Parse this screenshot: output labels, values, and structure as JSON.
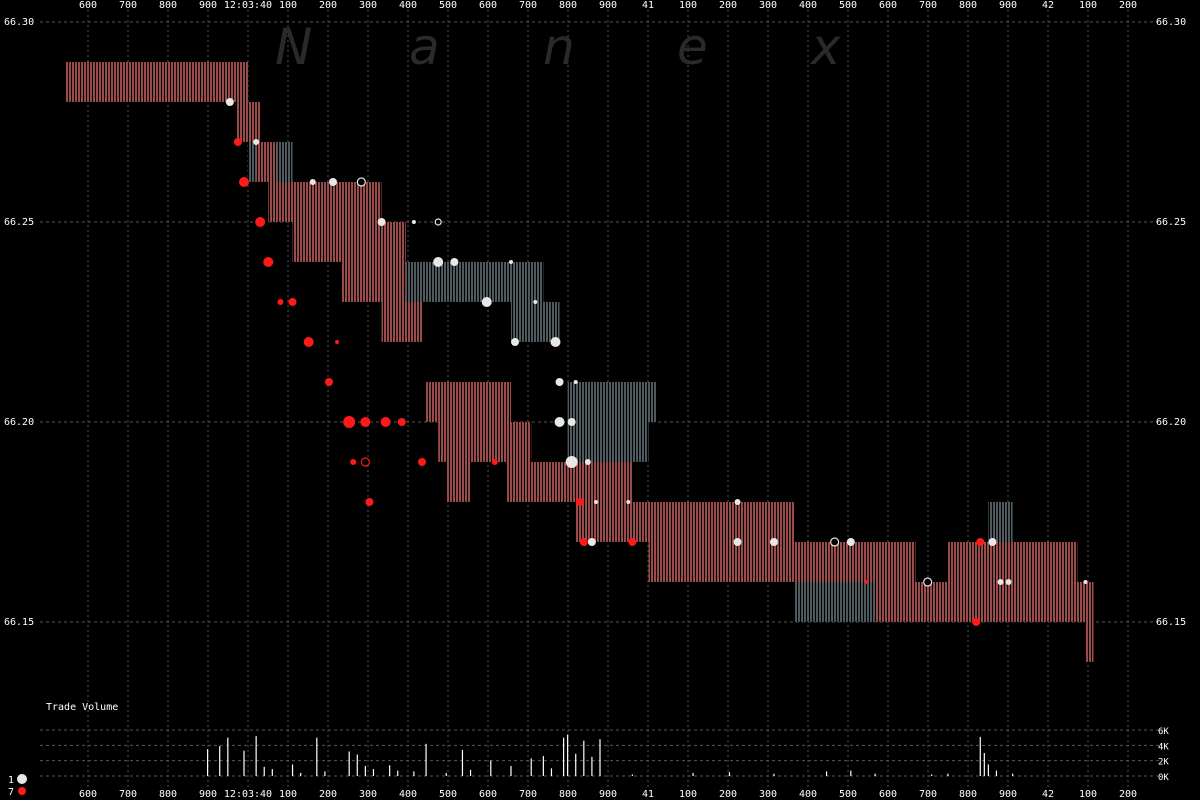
{
  "watermark": [
    "N",
    "a",
    "n",
    "e",
    "x"
  ],
  "time_ticks": [
    "600",
    "700",
    "800",
    "900",
    "12:03:40",
    "100",
    "200",
    "300",
    "400",
    "500",
    "600",
    "700",
    "800",
    "900",
    "41",
    "100",
    "200",
    "300",
    "400",
    "500",
    "600",
    "700",
    "800",
    "900",
    "42",
    "100",
    "200"
  ],
  "price_ticks": [
    "66.30",
    "66.25",
    "66.20",
    "66.15"
  ],
  "volume_title": "Trade Volume",
  "volume_ticks": [
    "6K",
    "4K",
    "2K",
    "0K"
  ],
  "legend": [
    {
      "label": "1",
      "color": "#e8e8e8"
    },
    {
      "label": "7",
      "color": "#ff1a1a"
    }
  ],
  "colors": {
    "background": "#000000",
    "grid": "#555555",
    "red_band": "#9c4a4a",
    "gray_band": "#4f5a5e",
    "white_trade": "#e8e8e8",
    "red_trade": "#ff1a1a",
    "volume_bar": "#ffffff"
  },
  "chart_data": {
    "type": "scatter",
    "title": "",
    "xlabel": "",
    "ylabel": "",
    "x_unit": "ms after 12:03:39.600",
    "xlim": [
      0,
      2640
    ],
    "ylim": [
      66.135,
      66.3
    ],
    "quote_bands": [
      {
        "color": "red",
        "x0": 0,
        "x1": 450,
        "lo": 66.28,
        "hi": 66.29
      },
      {
        "color": "red",
        "x0": 420,
        "x1": 480,
        "lo": 66.27,
        "hi": 66.28
      },
      {
        "color": "gray",
        "x0": 450,
        "x1": 560,
        "lo": 66.26,
        "hi": 66.27
      },
      {
        "color": "red",
        "x0": 470,
        "x1": 520,
        "lo": 66.26,
        "hi": 66.27
      },
      {
        "color": "red",
        "x0": 500,
        "x1": 780,
        "lo": 66.25,
        "hi": 66.26
      },
      {
        "color": "red",
        "x0": 560,
        "x1": 660,
        "lo": 66.24,
        "hi": 66.25
      },
      {
        "color": "red",
        "x0": 660,
        "x1": 840,
        "lo": 66.24,
        "hi": 66.25
      },
      {
        "color": "red",
        "x0": 680,
        "x1": 840,
        "lo": 66.23,
        "hi": 66.24
      },
      {
        "color": "gray",
        "x0": 840,
        "x1": 1180,
        "lo": 66.23,
        "hi": 66.24
      },
      {
        "color": "red",
        "x0": 780,
        "x1": 880,
        "lo": 66.22,
        "hi": 66.23
      },
      {
        "color": "gray",
        "x0": 1100,
        "x1": 1220,
        "lo": 66.22,
        "hi": 66.23
      },
      {
        "color": "red",
        "x0": 890,
        "x1": 1100,
        "lo": 66.2,
        "hi": 66.21
      },
      {
        "color": "gray",
        "x0": 1240,
        "x1": 1460,
        "lo": 66.2,
        "hi": 66.21
      },
      {
        "color": "red",
        "x0": 920,
        "x1": 1150,
        "lo": 66.19,
        "hi": 66.2
      },
      {
        "color": "gray",
        "x0": 1240,
        "x1": 1440,
        "lo": 66.19,
        "hi": 66.2
      },
      {
        "color": "red",
        "x0": 940,
        "x1": 1000,
        "lo": 66.18,
        "hi": 66.19
      },
      {
        "color": "red",
        "x0": 1090,
        "x1": 1240,
        "lo": 66.18,
        "hi": 66.19
      },
      {
        "color": "red",
        "x0": 1240,
        "x1": 1400,
        "lo": 66.18,
        "hi": 66.19
      },
      {
        "color": "red",
        "x0": 1260,
        "x1": 1800,
        "lo": 66.17,
        "hi": 66.18
      },
      {
        "color": "red",
        "x0": 1440,
        "x1": 2100,
        "lo": 66.16,
        "hi": 66.17
      },
      {
        "color": "red",
        "x0": 2180,
        "x1": 2500,
        "lo": 66.16,
        "hi": 66.17
      },
      {
        "color": "gray",
        "x0": 1800,
        "x1": 2000,
        "lo": 66.15,
        "hi": 66.16
      },
      {
        "color": "red",
        "x0": 2000,
        "x1": 2540,
        "lo": 66.15,
        "hi": 66.16
      },
      {
        "color": "red",
        "x0": 2520,
        "x1": 2540,
        "lo": 66.14,
        "hi": 66.15
      },
      {
        "color": "gray",
        "x0": 2280,
        "x1": 2340,
        "lo": 66.17,
        "hi": 66.18
      }
    ],
    "trades": [
      {
        "x": 405,
        "price": 66.28,
        "color": "white",
        "size": 4
      },
      {
        "x": 425,
        "price": 66.27,
        "color": "red",
        "size": 4
      },
      {
        "x": 470,
        "price": 66.27,
        "color": "white",
        "size": 3
      },
      {
        "x": 440,
        "price": 66.26,
        "color": "red",
        "size": 5
      },
      {
        "x": 610,
        "price": 66.26,
        "color": "white",
        "size": 3
      },
      {
        "x": 660,
        "price": 66.26,
        "color": "white",
        "size": 4
      },
      {
        "x": 730,
        "price": 66.26,
        "color": "white",
        "size": 4,
        "hollow": true
      },
      {
        "x": 480,
        "price": 66.25,
        "color": "red",
        "size": 5
      },
      {
        "x": 780,
        "price": 66.25,
        "color": "white",
        "size": 4
      },
      {
        "x": 860,
        "price": 66.25,
        "color": "white",
        "size": 2
      },
      {
        "x": 920,
        "price": 66.25,
        "color": "white",
        "size": 3,
        "hollow": true
      },
      {
        "x": 500,
        "price": 66.24,
        "color": "red",
        "size": 5
      },
      {
        "x": 920,
        "price": 66.24,
        "color": "white",
        "size": 5
      },
      {
        "x": 960,
        "price": 66.24,
        "color": "white",
        "size": 4
      },
      {
        "x": 1100,
        "price": 66.24,
        "color": "white",
        "size": 2
      },
      {
        "x": 530,
        "price": 66.23,
        "color": "red",
        "size": 3
      },
      {
        "x": 560,
        "price": 66.23,
        "color": "red",
        "size": 4
      },
      {
        "x": 1040,
        "price": 66.23,
        "color": "white",
        "size": 5
      },
      {
        "x": 1160,
        "price": 66.23,
        "color": "white",
        "size": 2
      },
      {
        "x": 600,
        "price": 66.22,
        "color": "red",
        "size": 5
      },
      {
        "x": 670,
        "price": 66.22,
        "color": "red",
        "size": 2
      },
      {
        "x": 1110,
        "price": 66.22,
        "color": "white",
        "size": 4
      },
      {
        "x": 1210,
        "price": 66.22,
        "color": "white",
        "size": 5
      },
      {
        "x": 650,
        "price": 66.21,
        "color": "red",
        "size": 4
      },
      {
        "x": 1220,
        "price": 66.21,
        "color": "white",
        "size": 4
      },
      {
        "x": 1260,
        "price": 66.21,
        "color": "white",
        "size": 2
      },
      {
        "x": 700,
        "price": 66.2,
        "color": "red",
        "size": 6
      },
      {
        "x": 740,
        "price": 66.2,
        "color": "red",
        "size": 5
      },
      {
        "x": 790,
        "price": 66.2,
        "color": "red",
        "size": 5
      },
      {
        "x": 830,
        "price": 66.2,
        "color": "red",
        "size": 4
      },
      {
        "x": 1220,
        "price": 66.2,
        "color": "white",
        "size": 5
      },
      {
        "x": 1250,
        "price": 66.2,
        "color": "white",
        "size": 4
      },
      {
        "x": 710,
        "price": 66.19,
        "color": "red",
        "size": 3
      },
      {
        "x": 740,
        "price": 66.19,
        "color": "red",
        "size": 4,
        "hollow": true
      },
      {
        "x": 880,
        "price": 66.19,
        "color": "red",
        "size": 4
      },
      {
        "x": 1060,
        "price": 66.19,
        "color": "red",
        "size": 3
      },
      {
        "x": 1250,
        "price": 66.19,
        "color": "white",
        "size": 6
      },
      {
        "x": 1290,
        "price": 66.19,
        "color": "white",
        "size": 3
      },
      {
        "x": 750,
        "price": 66.18,
        "color": "red",
        "size": 4
      },
      {
        "x": 1270,
        "price": 66.18,
        "color": "red",
        "size": 4
      },
      {
        "x": 1310,
        "price": 66.18,
        "color": "white",
        "size": 2
      },
      {
        "x": 1390,
        "price": 66.18,
        "color": "white",
        "size": 2
      },
      {
        "x": 1660,
        "price": 66.18,
        "color": "white",
        "size": 3
      },
      {
        "x": 1280,
        "price": 66.17,
        "color": "red",
        "size": 4
      },
      {
        "x": 1300,
        "price": 66.17,
        "color": "white",
        "size": 4
      },
      {
        "x": 1400,
        "price": 66.17,
        "color": "red",
        "size": 4
      },
      {
        "x": 1660,
        "price": 66.17,
        "color": "white",
        "size": 4
      },
      {
        "x": 1750,
        "price": 66.17,
        "color": "white",
        "size": 4
      },
      {
        "x": 1900,
        "price": 66.17,
        "color": "white",
        "size": 4,
        "hollow": true
      },
      {
        "x": 1940,
        "price": 66.17,
        "color": "white",
        "size": 4
      },
      {
        "x": 2260,
        "price": 66.17,
        "color": "red",
        "size": 4
      },
      {
        "x": 2290,
        "price": 66.17,
        "color": "white",
        "size": 4
      },
      {
        "x": 1980,
        "price": 66.16,
        "color": "red",
        "size": 2
      },
      {
        "x": 2130,
        "price": 66.16,
        "color": "white",
        "size": 4,
        "hollow": true
      },
      {
        "x": 2310,
        "price": 66.16,
        "color": "white",
        "size": 3
      },
      {
        "x": 2330,
        "price": 66.16,
        "color": "white",
        "size": 3
      },
      {
        "x": 2520,
        "price": 66.16,
        "color": "white",
        "size": 2
      },
      {
        "x": 2250,
        "price": 66.15,
        "color": "red",
        "size": 4
      }
    ],
    "volume": {
      "ylim": [
        0,
        6000
      ],
      "bars": [
        {
          "x": 350,
          "v": 3500
        },
        {
          "x": 380,
          "v": 3900
        },
        {
          "x": 400,
          "v": 5000
        },
        {
          "x": 440,
          "v": 3300
        },
        {
          "x": 470,
          "v": 5200
        },
        {
          "x": 490,
          "v": 1200
        },
        {
          "x": 510,
          "v": 900
        },
        {
          "x": 560,
          "v": 1500
        },
        {
          "x": 580,
          "v": 400
        },
        {
          "x": 620,
          "v": 5000
        },
        {
          "x": 640,
          "v": 600
        },
        {
          "x": 700,
          "v": 3200
        },
        {
          "x": 720,
          "v": 2800
        },
        {
          "x": 740,
          "v": 1300
        },
        {
          "x": 760,
          "v": 900
        },
        {
          "x": 800,
          "v": 1400
        },
        {
          "x": 820,
          "v": 700
        },
        {
          "x": 860,
          "v": 600
        },
        {
          "x": 890,
          "v": 4200
        },
        {
          "x": 940,
          "v": 400
        },
        {
          "x": 980,
          "v": 3400
        },
        {
          "x": 1000,
          "v": 800
        },
        {
          "x": 1050,
          "v": 2000
        },
        {
          "x": 1100,
          "v": 1300
        },
        {
          "x": 1150,
          "v": 2300
        },
        {
          "x": 1180,
          "v": 2600
        },
        {
          "x": 1200,
          "v": 1000
        },
        {
          "x": 1230,
          "v": 5000
        },
        {
          "x": 1240,
          "v": 5400
        },
        {
          "x": 1260,
          "v": 2900
        },
        {
          "x": 1280,
          "v": 4600
        },
        {
          "x": 1300,
          "v": 2500
        },
        {
          "x": 1320,
          "v": 4800
        },
        {
          "x": 1400,
          "v": 200
        },
        {
          "x": 1550,
          "v": 400
        },
        {
          "x": 1640,
          "v": 500
        },
        {
          "x": 1750,
          "v": 300
        },
        {
          "x": 1880,
          "v": 600
        },
        {
          "x": 1940,
          "v": 700
        },
        {
          "x": 2000,
          "v": 300
        },
        {
          "x": 2140,
          "v": 200
        },
        {
          "x": 2180,
          "v": 300
        },
        {
          "x": 2260,
          "v": 5100
        },
        {
          "x": 2270,
          "v": 3000
        },
        {
          "x": 2280,
          "v": 1500
        },
        {
          "x": 2300,
          "v": 700
        },
        {
          "x": 2340,
          "v": 300
        }
      ]
    }
  }
}
